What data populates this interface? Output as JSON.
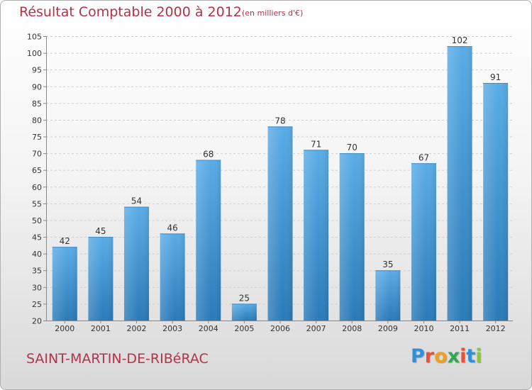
{
  "header": {
    "title": "Résultat Comptable 2000 à 2012",
    "subtitle": "(en milliers d'€)"
  },
  "footer": {
    "commune": "SAINT-MARTIN-DE-RIBéRAC",
    "logo_letters": [
      "P",
      "r",
      "o",
      "x",
      "i",
      "t",
      "i"
    ],
    "logo_colors": [
      "#2f8fd8",
      "#e8503a",
      "#f0a020",
      "#2fa84f",
      "#e8503a",
      "#2f8fd8",
      "#8cc63f"
    ]
  },
  "chart_data": {
    "type": "bar",
    "title": "Résultat Comptable 2000 à 2012",
    "categories": [
      "2000",
      "2001",
      "2002",
      "2003",
      "2004",
      "2005",
      "2006",
      "2007",
      "2008",
      "2009",
      "2010",
      "2011",
      "2012"
    ],
    "values": [
      42,
      45,
      54,
      46,
      68,
      25,
      78,
      71,
      70,
      35,
      67,
      102,
      91
    ],
    "ylim": [
      20,
      105
    ],
    "yticks": [
      20,
      25,
      30,
      35,
      40,
      45,
      50,
      55,
      60,
      65,
      70,
      75,
      80,
      85,
      90,
      95,
      100,
      105
    ],
    "grid": true,
    "bar_color_top": "#5aace6",
    "bar_color_bottom": "#2a7ab8"
  }
}
